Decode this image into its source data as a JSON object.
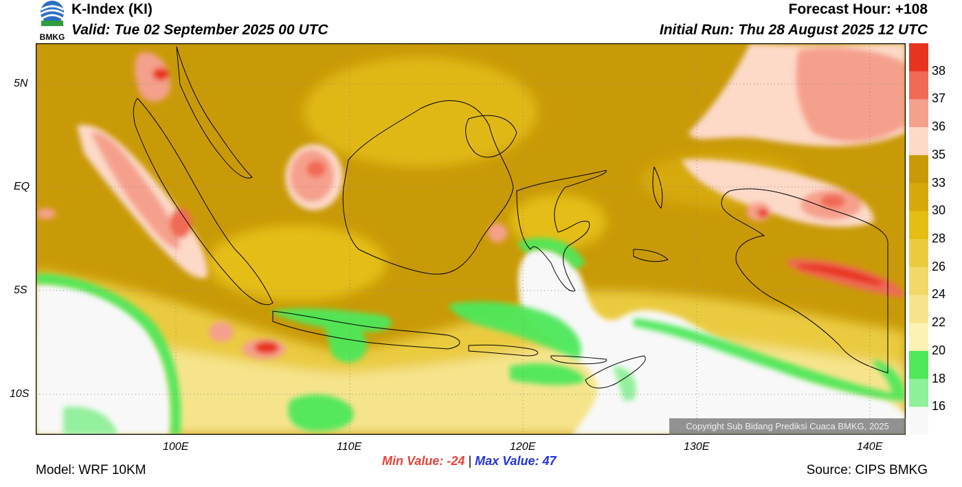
{
  "header": {
    "title": "K-Index (KI)",
    "valid": "Valid: Tue 02 September 2025 00 UTC",
    "forecast_hour": "Forecast Hour: +108",
    "initial_run": "Initial Run: Thu 28 August 2025 12 UTC",
    "logo_text": "BMKG"
  },
  "axes": {
    "lat_labels": [
      "5N",
      "EQ",
      "5S",
      "10S"
    ],
    "lon_labels": [
      "100E",
      "110E",
      "120E",
      "130E",
      "140E"
    ]
  },
  "colorbar": {
    "labels": [
      "38",
      "37",
      "36",
      "35",
      "33",
      "30",
      "28",
      "26",
      "24",
      "22",
      "20",
      "18",
      "16"
    ],
    "colors": [
      "#e8331f",
      "#f06a55",
      "#f5a08c",
      "#fdd9c8",
      "#c99a07",
      "#d6a90a",
      "#e4be12",
      "#eacb40",
      "#f1d867",
      "#f6e48c",
      "#fbf2b4",
      "#4ee85a",
      "#8ef098",
      "#f8f8f8"
    ]
  },
  "stats": {
    "min_label": "Min Value: -24",
    "separator": "|",
    "max_label": "Max Value:  47"
  },
  "footer": {
    "model": "Model: WRF 10KM",
    "source": "Source: CIPS BMKG",
    "copyright": "Copyright Sub Bidang Prediksi Cuaca BMKG, 2025"
  }
}
